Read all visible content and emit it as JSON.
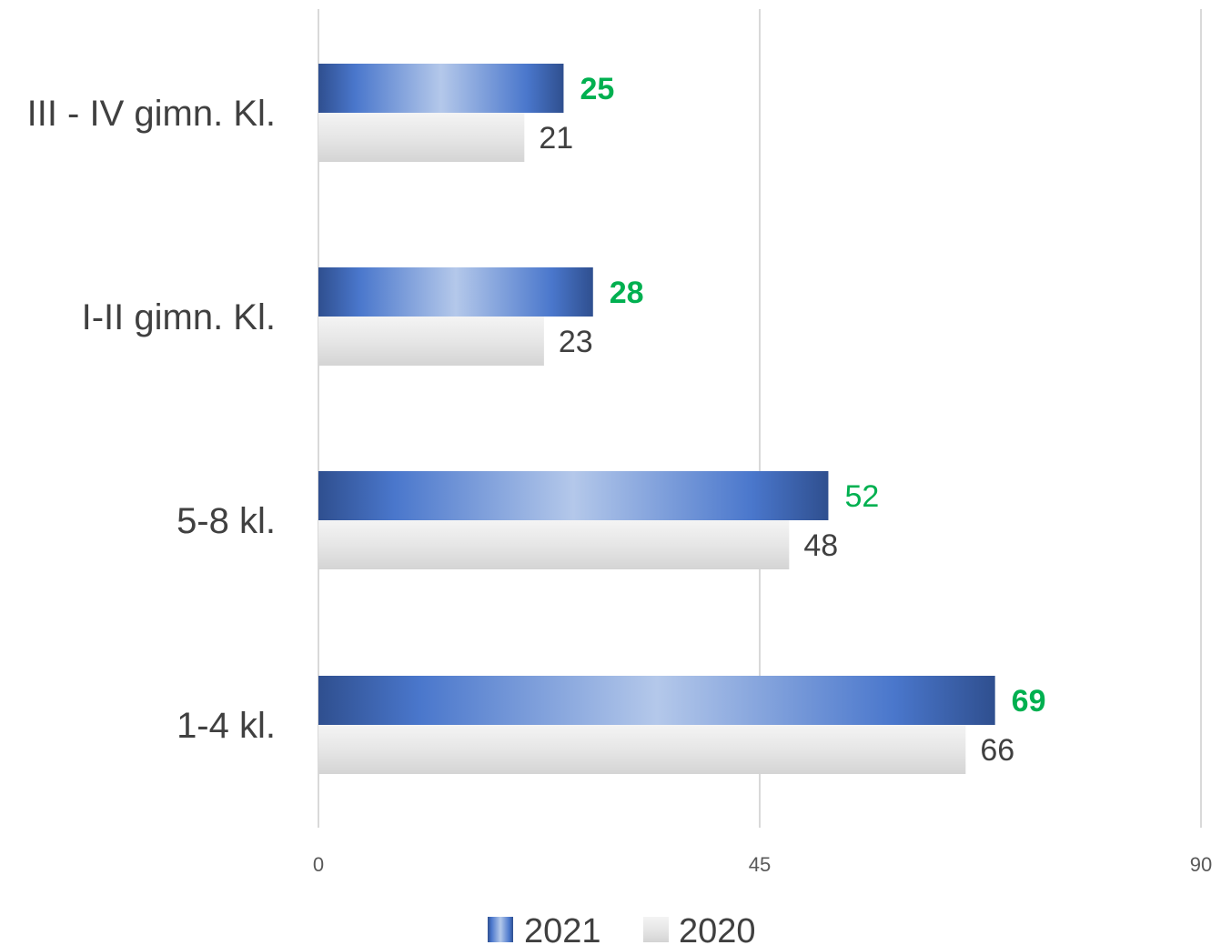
{
  "chart_data": {
    "type": "bar",
    "orientation": "horizontal",
    "categories": [
      "1-4 kl.",
      "5-8 kl.",
      "I-II gimn. Kl.",
      "III - IV gimn. Kl."
    ],
    "series": [
      {
        "name": "2021",
        "values": [
          69,
          52,
          28,
          25
        ],
        "label_bold": [
          true,
          false,
          true,
          true
        ],
        "color": "#4472c4",
        "label_color": "#00b050"
      },
      {
        "name": "2020",
        "values": [
          66,
          48,
          23,
          21
        ],
        "color": "#e0e0e0",
        "label_color": "#404040"
      }
    ],
    "xlim": [
      0,
      90
    ],
    "xticks": [
      "0",
      "45",
      "90"
    ],
    "grid": true,
    "legend": "bottom"
  }
}
